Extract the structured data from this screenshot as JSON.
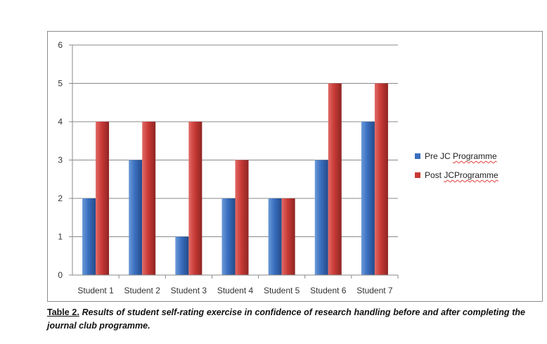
{
  "chart_data": {
    "type": "bar",
    "categories": [
      "Student 1",
      "Student 2",
      "Student 3",
      "Student 4",
      "Student 5",
      "Student 6",
      "Student 7"
    ],
    "series": [
      {
        "name": "Pre JC Programme",
        "values": [
          2,
          3,
          1,
          2,
          2,
          3,
          4
        ],
        "color": "#3a6fbf"
      },
      {
        "name": "Post JC Programme",
        "values": [
          4,
          4,
          4,
          3,
          2,
          5,
          5
        ],
        "color": "#c83a36"
      }
    ],
    "yticks": [
      "0",
      "1",
      "2",
      "3",
      "4",
      "5",
      "6"
    ],
    "ylim": [
      0,
      6
    ],
    "grid": true,
    "legend_position": "right"
  },
  "legend": {
    "pre_label_a": "Pre JC ",
    "pre_label_b": "Programme",
    "post_label_a": "Post ",
    "post_label_b": "JCProgramme"
  },
  "caption": {
    "label": "Table 2.",
    "text": " Results of student self-rating exercise in confidence of research handling before and after completing the journal club programme."
  }
}
